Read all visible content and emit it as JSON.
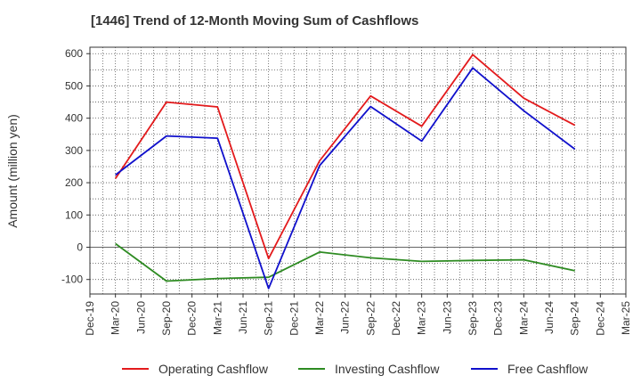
{
  "chart_data": {
    "type": "line",
    "title": "[1446]  Trend of 12-Month Moving Sum of Cashflows",
    "xlabel": "",
    "ylabel": "Amount (million yen)",
    "ylim": [
      -145,
      620
    ],
    "yticks": [
      -100,
      0,
      100,
      200,
      300,
      400,
      500,
      600
    ],
    "categories": [
      "Dec-19",
      "Mar-20",
      "Jun-20",
      "Sep-20",
      "Dec-20",
      "Mar-21",
      "Jun-21",
      "Sep-21",
      "Dec-21",
      "Mar-22",
      "Jun-22",
      "Sep-22",
      "Dec-22",
      "Mar-23",
      "Jun-23",
      "Sep-23",
      "Dec-23",
      "Mar-24",
      "Jun-24",
      "Sep-24",
      "Dec-24",
      "Mar-25"
    ],
    "grid": true,
    "legend_position": "bottom",
    "series": [
      {
        "name": "Operating Cashflow",
        "color": "#e31a1c",
        "values": [
          null,
          213,
          null,
          450,
          null,
          435,
          null,
          -35,
          null,
          268,
          null,
          469,
          null,
          375,
          null,
          597,
          null,
          462,
          null,
          378,
          null,
          null
        ]
      },
      {
        "name": "Investing Cashflow",
        "color": "#2e8b22",
        "values": [
          null,
          11,
          null,
          -105,
          null,
          -97,
          null,
          -93,
          null,
          -15,
          null,
          -33,
          null,
          -44,
          null,
          -41,
          null,
          -39,
          null,
          -73,
          null,
          null
        ]
      },
      {
        "name": "Free Cashflow",
        "color": "#1010cc",
        "values": [
          null,
          224,
          null,
          345,
          null,
          338,
          null,
          -128,
          null,
          253,
          null,
          436,
          null,
          329,
          null,
          556,
          null,
          423,
          null,
          304,
          null,
          null
        ]
      }
    ]
  }
}
